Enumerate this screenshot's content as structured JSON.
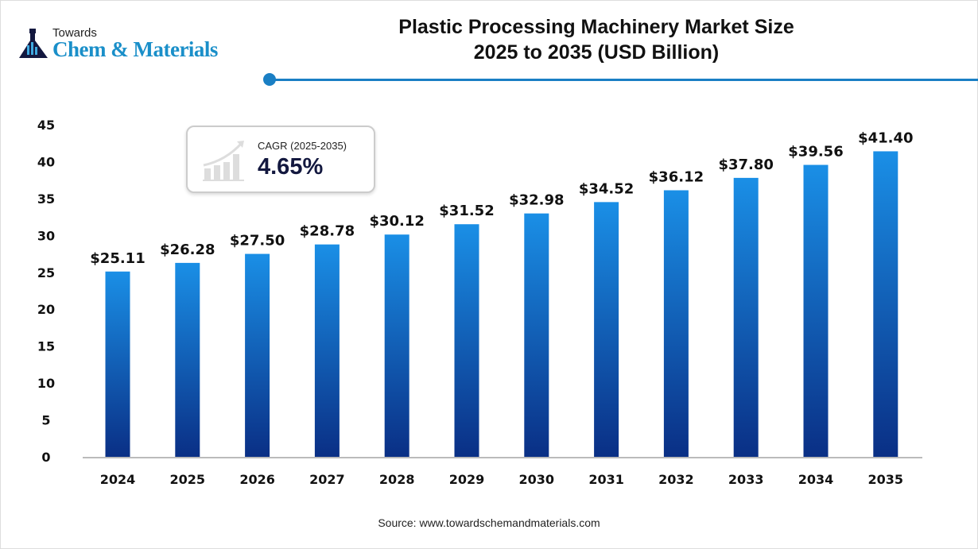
{
  "logo": {
    "line1": "Towards",
    "line2": "Chem & Materials"
  },
  "title_line1": "Plastic Processing Machinery Market Size",
  "title_line2": "2025 to 2035 (USD Billion)",
  "cagr": {
    "label": "CAGR (2025-2035)",
    "value": "4.65%",
    "icon": "growth-chart-icon"
  },
  "source": "Source: www.towardschemandmaterials.com",
  "colors": {
    "bar_top": "#1a8fe6",
    "bar_bottom": "#0a2f85",
    "accent": "#1a7fc4"
  },
  "chart_data": {
    "type": "bar",
    "title": "Plastic Processing Machinery Market Size 2025 to 2035 (USD Billion)",
    "categories": [
      "2024",
      "2025",
      "2026",
      "2027",
      "2028",
      "2029",
      "2030",
      "2031",
      "2032",
      "2033",
      "2034",
      "2035"
    ],
    "values": [
      25.11,
      26.28,
      27.5,
      28.78,
      30.12,
      31.52,
      32.98,
      34.52,
      36.12,
      37.8,
      39.56,
      41.4
    ],
    "data_labels": [
      "$25.11",
      "$26.28",
      "$27.50",
      "$28.78",
      "$30.12",
      "$31.52",
      "$32.98",
      "$34.52",
      "$36.12",
      "$37.80",
      "$39.56",
      "$41.40"
    ],
    "yticks": [
      "0",
      "5",
      "10",
      "15",
      "20",
      "25",
      "30",
      "35",
      "40",
      "45"
    ],
    "ylim": [
      0,
      45
    ],
    "grid": false,
    "xlabel": "",
    "ylabel": ""
  }
}
